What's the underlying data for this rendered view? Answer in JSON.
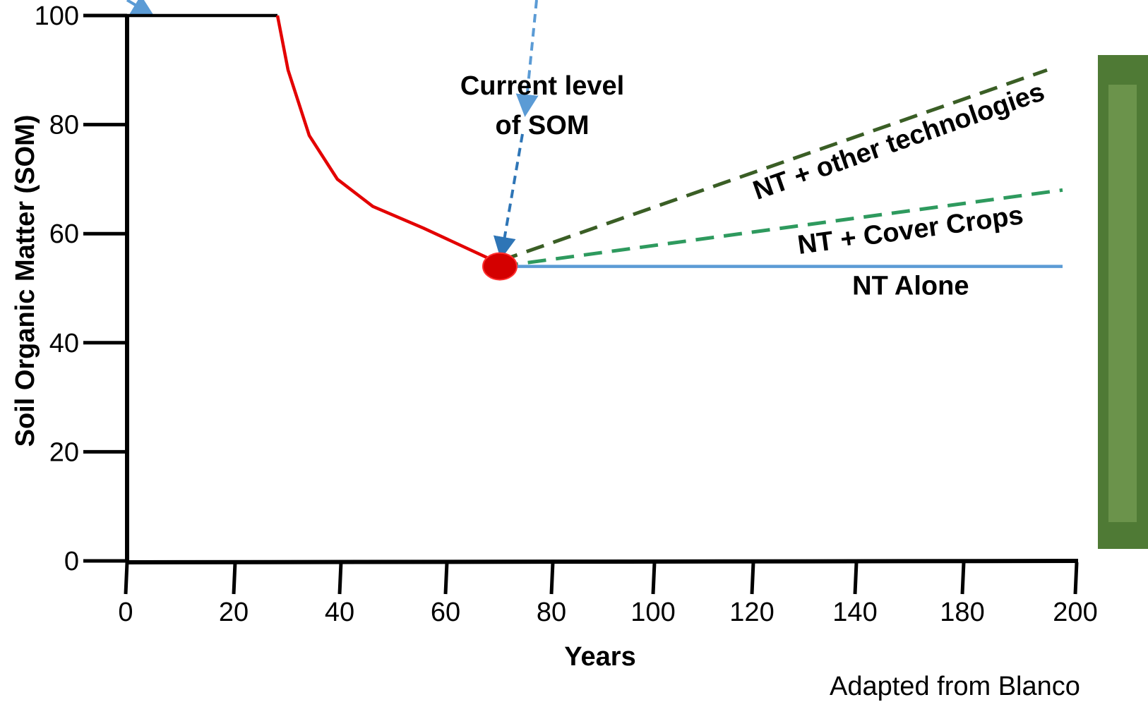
{
  "chart_data": {
    "type": "line",
    "xlabel": "Years",
    "ylabel": "Soil Organic Matter (SOM)",
    "xlim": [
      0,
      200
    ],
    "ylim": [
      0,
      100
    ],
    "xticks": [
      0,
      20,
      40,
      60,
      80,
      100,
      120,
      140,
      180,
      200
    ],
    "yticks": [
      0,
      20,
      40,
      60,
      80,
      100
    ],
    "series": [
      {
        "color": "#000000",
        "dash": false,
        "x": [
          0,
          28
        ],
        "values": [
          100,
          100
        ]
      },
      {
        "color": "#e30000",
        "dash": false,
        "x": [
          28,
          30,
          34,
          39.3,
          46,
          55.6,
          67.6,
          70
        ],
        "values": [
          100,
          90,
          78,
          70,
          65,
          61,
          55.6,
          54
        ]
      },
      {
        "name": "NT + other technologies",
        "color": "#3a5e25",
        "dash": true,
        "x": [
          70,
          194.75
        ],
        "values": [
          55,
          90
        ]
      },
      {
        "name": "NT + Cover Crops",
        "color": "#2e9a5e",
        "dash": true,
        "x": [
          70,
          197.5
        ],
        "values": [
          54,
          68
        ]
      },
      {
        "name": "NT Alone",
        "color": "#5b9bd5",
        "dash": false,
        "x": [
          70,
          197.5
        ],
        "values": [
          54,
          54
        ]
      }
    ],
    "point": {
      "x": 70,
      "value": 54,
      "color": "#d40000"
    },
    "annotation": [
      "Current level",
      "of SOM"
    ],
    "source": "Adapted from Blanco"
  }
}
